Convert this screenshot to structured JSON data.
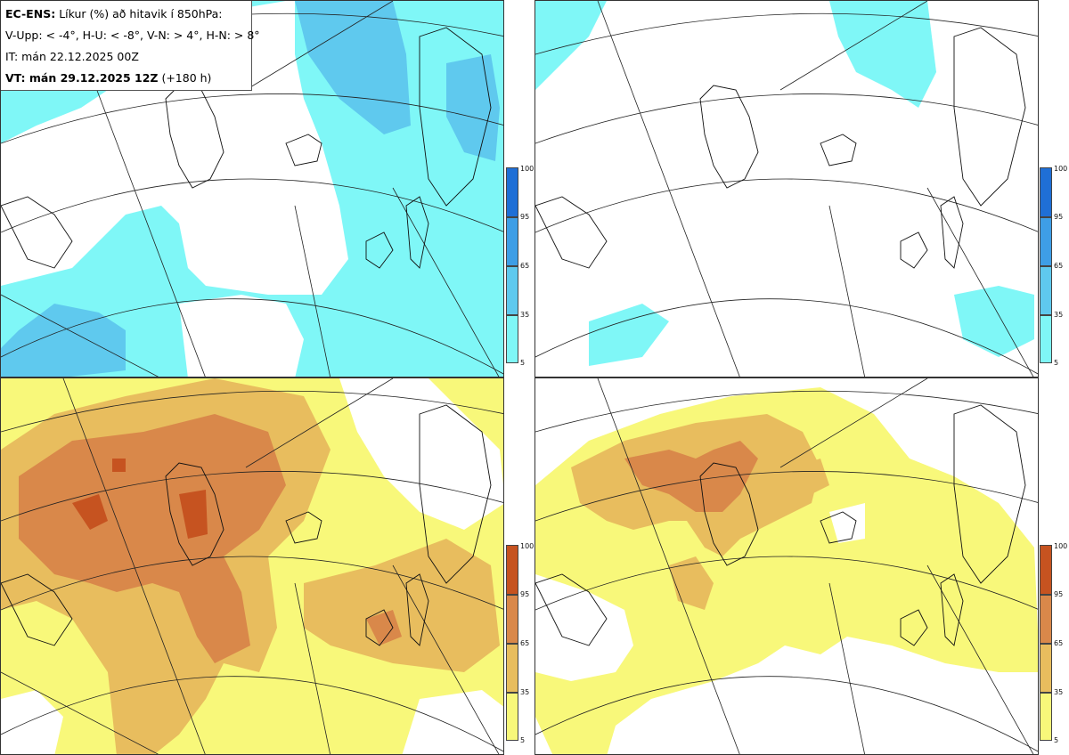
{
  "header": {
    "model_label": "EC-ENS:",
    "description": "Líkur (%) að hitavik í 850hPa:",
    "legend_line": "V-Upp: < -4°, H-U: < -8°, V-N: > 4°, H-N: > 8°",
    "issue_time": "IT: mán 22.12.2025 00Z",
    "valid_label": "VT: mán 29.12.2025 12Z",
    "lead_time": "(+180 h)"
  },
  "colorbars": {
    "cold": {
      "ticks": [
        "100",
        "95",
        "65",
        "35",
        "5"
      ],
      "colors": [
        "#1f6fd6",
        "#3e9ee6",
        "#5fc9ee",
        "#7ff7f7"
      ]
    },
    "warm": {
      "ticks": [
        "100",
        "95",
        "65",
        "35",
        "5"
      ],
      "colors": [
        "#c65320",
        "#d9884a",
        "#e8bd5e",
        "#f8f87a"
      ]
    }
  },
  "panels": [
    {
      "id": "cold-moderate"
    },
    {
      "id": "cold-strong"
    },
    {
      "id": "warm-moderate"
    },
    {
      "id": "warm-strong"
    }
  ]
}
